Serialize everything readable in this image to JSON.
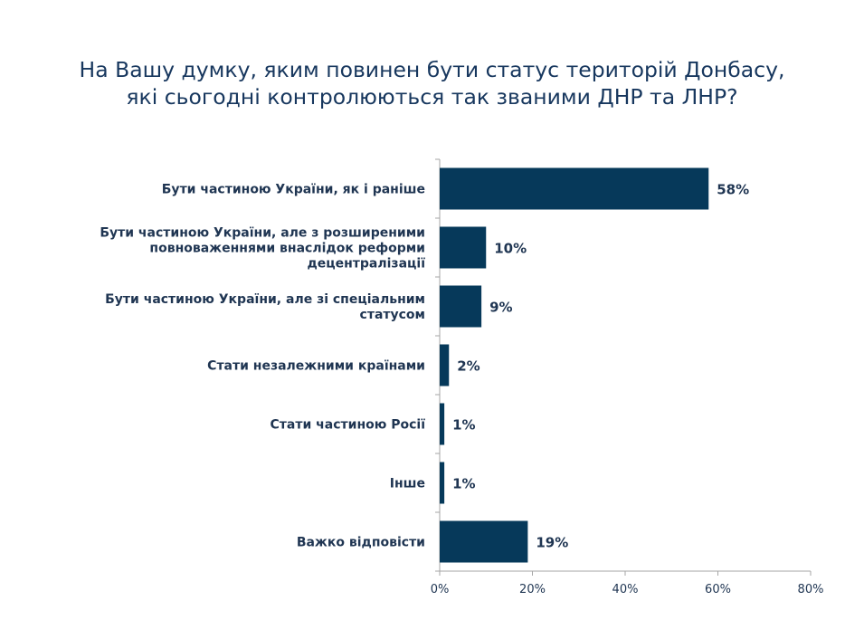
{
  "chart_data": {
    "type": "bar",
    "orientation": "horizontal",
    "title": [
      "На Вашу думку, яким повинен бути статус територій Донбасу,",
      "які сьогодні контролюються так званими ДНР та ЛНР?"
    ],
    "categories": [
      [
        "Бути частиною України, як і раніше"
      ],
      [
        "Бути частиною України, але з розширеними",
        "повноваженнями внаслідок реформи",
        "децентралізації"
      ],
      [
        "Бути частиною України, але зі спеціальним",
        "статусом"
      ],
      [
        "Стати незалежними країнами"
      ],
      [
        "Стати частиною Росії"
      ],
      [
        "Інше"
      ],
      [
        "Важко відповісти"
      ]
    ],
    "values": [
      58,
      10,
      9,
      2,
      1,
      1,
      19
    ],
    "data_labels": [
      "58%",
      "10%",
      "9%",
      "2%",
      "1%",
      "1%",
      "19%"
    ],
    "xlim": [
      0,
      80
    ],
    "xticks": [
      0,
      20,
      40,
      60,
      80
    ],
    "xtick_labels": [
      "0%",
      "20%",
      "40%",
      "60%",
      "80%"
    ],
    "grid": false,
    "bar_color": "#06395a"
  }
}
